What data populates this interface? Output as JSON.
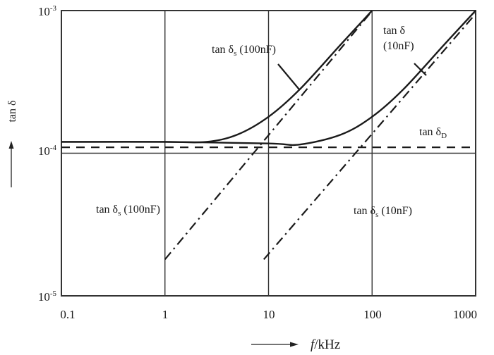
{
  "chart_data": {
    "type": "line",
    "title": "",
    "xlabel": "f/kHz",
    "ylabel": "tan δ",
    "xscale": "log",
    "yscale": "log",
    "xlim": [
      0.1,
      1000
    ],
    "ylim": [
      1e-05,
      0.001
    ],
    "grid": "vertical lines at each decade; horizontal line at 1e-4",
    "x_ticks": [
      "0.1",
      "1",
      "10",
      "100",
      "1000"
    ],
    "y_ticks": [
      {
        "base": "10",
        "exp": "-3",
        "value": 0.001
      },
      {
        "base": "10",
        "exp": "-4",
        "value": 0.0001
      },
      {
        "base": "10",
        "exp": "-5",
        "value": 1e-05
      }
    ],
    "series": [
      {
        "name": "tan δ (100nF)",
        "label_main": "tan δ",
        "label_sub": "s",
        "label_suffix": " (100nF)",
        "style": "solid",
        "x": [
          0.1,
          1,
          2.5,
          5,
          10,
          20,
          50,
          100
        ],
        "values": [
          0.00012,
          0.00012,
          0.00012,
          0.000135,
          0.00018,
          0.00028,
          0.00058,
          0.001
        ]
      },
      {
        "name": "tan δ (10nF)",
        "label_main": "tan δ",
        "label_line2": "(10nF)",
        "style": "solid",
        "x": [
          0.1,
          1,
          10,
          20,
          50,
          100,
          200,
          500,
          1000
        ],
        "values": [
          0.00012,
          0.00012,
          0.000117,
          0.000115,
          0.000135,
          0.00018,
          0.00028,
          0.00058,
          0.001
        ]
      },
      {
        "name": "tan δD",
        "label_main": "tan δ",
        "label_sub": "D",
        "style": "dashed",
        "x": [
          0.1,
          1000
        ],
        "values": [
          0.00011,
          0.00011
        ]
      },
      {
        "name": "tan δs (100nF)",
        "label_main": "tan δ",
        "label_sub": "s",
        "label_suffix": " (100nF)",
        "style": "dashdot",
        "x": [
          1,
          95
        ],
        "values": [
          1.8e-05,
          0.00095
        ]
      },
      {
        "name": "tan δs (10nF)",
        "label_main": "tan δ",
        "label_sub": "s",
        "label_suffix": " (10nF)",
        "style": "dashdot",
        "x": [
          9,
          1000
        ],
        "values": [
          1.8e-05,
          0.00095
        ]
      }
    ],
    "annotations": [
      "tan δs (100nF) — pointer to solid 100nF curve",
      "tan δ (10nF) — pointer to solid 10nF curve",
      "tan δD — dashed line",
      "tan δs (100nF) — label near lower dash-dot line",
      "tan δs (10nF) — label near right dash-dot line"
    ]
  },
  "labels": {
    "y_axis_title": "tan δ",
    "x_axis_title_f": "f",
    "x_axis_title_unit": "/kHz",
    "ann_top_100nF_main": "tan δ",
    "ann_top_100nF_sub": "s",
    "ann_top_100nF_suffix": " (100nF)",
    "ann_top_10nF_line1": "tan δ",
    "ann_top_10nF_line2": "(10nF)",
    "ann_D_main": "tan δ",
    "ann_D_sub": "D",
    "ann_low_100nF_main": "tan δ",
    "ann_low_100nF_sub": "s",
    "ann_low_100nF_suffix": " (100nF)",
    "ann_low_10nF_main": "tan δ",
    "ann_low_10nF_sub": "s",
    "ann_low_10nF_suffix": " (10nF)"
  },
  "colors": {
    "ink": "#1a1a1a",
    "background": "#ffffff"
  }
}
